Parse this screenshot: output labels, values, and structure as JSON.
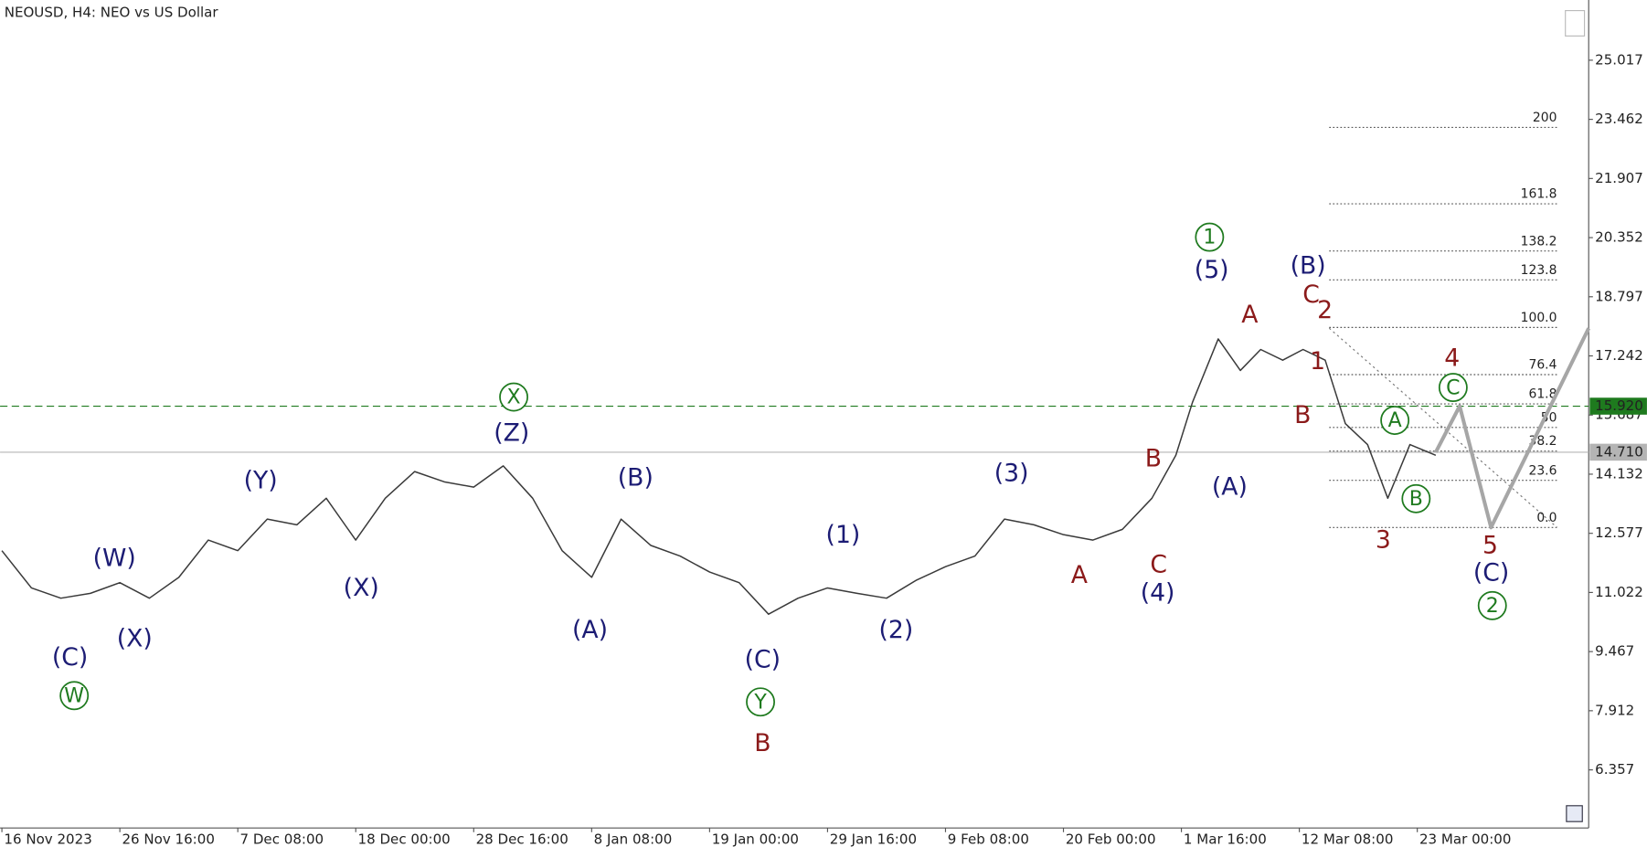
{
  "chart_data": {
    "type": "line",
    "title": "NEOUSD, H4:  NEO vs US Dollar",
    "x": [
      0,
      16,
      32,
      48,
      64,
      80,
      96,
      112,
      128,
      144,
      160,
      176,
      192,
      208,
      224,
      240,
      256,
      272,
      288,
      304,
      320,
      336,
      352,
      368,
      384,
      400,
      416,
      432,
      448,
      464,
      480,
      496,
      512,
      528,
      544,
      560,
      576,
      592,
      608,
      624,
      637,
      646,
      660,
      672,
      683,
      695,
      706,
      718,
      729,
      741,
      752,
      764,
      778
    ],
    "series": [
      {
        "color": "#3a3a3a",
        "values": [
          12.12,
          11.14,
          10.87,
          11.0,
          11.28,
          10.87,
          11.42,
          12.4,
          12.12,
          12.95,
          12.8,
          13.5,
          12.4,
          13.5,
          14.2,
          13.93,
          13.79,
          14.35,
          13.5,
          12.12,
          11.42,
          12.95,
          12.26,
          11.98,
          11.56,
          11.28,
          10.45,
          10.87,
          11.14,
          11.0,
          10.87,
          11.34,
          11.7,
          11.98,
          12.95,
          12.8,
          12.54,
          12.4,
          12.68,
          13.5,
          14.63,
          16.02,
          17.69,
          16.86,
          17.41,
          17.13,
          17.41,
          17.13,
          15.46,
          14.91,
          13.5,
          14.91,
          14.63
        ]
      },
      {
        "color": "#a6a6a6",
        "x": [
          778,
          791,
          808,
          861
        ],
        "values": [
          14.71,
          15.92,
          12.73,
          17.97
        ]
      }
    ],
    "xlim": [
      -1,
      861
    ],
    "xticks": [
      {
        "value": 0,
        "label": "16 Nov 2023"
      },
      {
        "value": 64,
        "label": "26 Nov 16:00"
      },
      {
        "value": 128,
        "label": "7 Dec 08:00"
      },
      {
        "value": 192,
        "label": "18 Dec 00:00"
      },
      {
        "value": 256,
        "label": "28 Dec 16:00"
      },
      {
        "value": 320,
        "label": "8 Jan 08:00"
      },
      {
        "value": 384,
        "label": "19 Jan 00:00"
      },
      {
        "value": 448,
        "label": "29 Jan 16:00"
      },
      {
        "value": 512,
        "label": "9 Feb 08:00"
      },
      {
        "value": 576,
        "label": "20 Feb 00:00"
      },
      {
        "value": 640,
        "label": "1 Mar 16:00"
      },
      {
        "value": 704,
        "label": "12 Mar 08:00"
      },
      {
        "value": 768,
        "label": "23 Mar 00:00"
      }
    ],
    "ylim": [
      4.83,
      26.6
    ],
    "yticks": [
      6.357,
      7.912,
      9.467,
      11.022,
      12.577,
      14.132,
      15.687,
      17.242,
      18.797,
      20.352,
      21.907,
      23.462,
      25.017
    ],
    "price_lines": [
      {
        "value": 15.92,
        "label": "15.920",
        "color": "#1e7a1e",
        "dashed": true
      },
      {
        "value": 14.71,
        "label": "14.710",
        "color": "#b4b4b4",
        "dashed": false
      }
    ],
    "fibonacci": [
      {
        "label": "0.0",
        "value": 12.73
      },
      {
        "label": "23.6",
        "value": 13.97
      },
      {
        "label": "38.2",
        "value": 14.74
      },
      {
        "label": "50",
        "value": 15.36
      },
      {
        "label": "61.8",
        "value": 15.98
      },
      {
        "label": "76.4",
        "value": 16.75
      },
      {
        "label": "100.0",
        "value": 17.99
      },
      {
        "label": "123.8",
        "value": 19.24
      },
      {
        "label": "138.2",
        "value": 20.0
      },
      {
        "label": "161.8",
        "value": 21.24
      },
      {
        "label": "200",
        "value": 23.25
      }
    ],
    "annotations": [
      {
        "text": "(C)",
        "color": "#1c1c74"
      },
      {
        "text": "W",
        "color": "#1e7a1e",
        "circled": true
      },
      {
        "text": "(W)",
        "color": "#1c1c74"
      },
      {
        "text": "(X)",
        "color": "#1c1c74"
      },
      {
        "text": "(Y)",
        "color": "#1c1c74"
      },
      {
        "text": "(X)",
        "color": "#1c1c74"
      },
      {
        "text": "(Z)",
        "color": "#1c1c74"
      },
      {
        "text": "X",
        "color": "#1e7a1e",
        "circled": true
      },
      {
        "text": "(A)",
        "color": "#1c1c74"
      },
      {
        "text": "(B)",
        "color": "#1c1c74"
      },
      {
        "text": "(C)",
        "color": "#1c1c74"
      },
      {
        "text": "Y",
        "color": "#1e7a1e",
        "circled": true
      },
      {
        "text": "B",
        "color": "#8b1a1a"
      },
      {
        "text": "(1)",
        "color": "#1c1c74"
      },
      {
        "text": "(2)",
        "color": "#1c1c74"
      },
      {
        "text": "(3)",
        "color": "#1c1c74"
      },
      {
        "text": "A",
        "color": "#8b1a1a"
      },
      {
        "text": "B",
        "color": "#8b1a1a"
      },
      {
        "text": "C",
        "color": "#8b1a1a"
      },
      {
        "text": "(4)",
        "color": "#1c1c74"
      },
      {
        "text": "1",
        "color": "#1e7a1e",
        "circled": true
      },
      {
        "text": "(5)",
        "color": "#1c1c74"
      },
      {
        "text": "A",
        "color": "#8b1a1a"
      },
      {
        "text": "(A)",
        "color": "#1c1c74"
      },
      {
        "text": "(B)",
        "color": "#1c1c74"
      },
      {
        "text": "C",
        "color": "#8b1a1a"
      },
      {
        "text": "2",
        "color": "#8b1a1a"
      },
      {
        "text": "1",
        "color": "#8b1a1a"
      },
      {
        "text": "B",
        "color": "#8b1a1a"
      },
      {
        "text": "A",
        "color": "#1e7a1e",
        "circled": true
      },
      {
        "text": "B",
        "color": "#1e7a1e",
        "circled": true
      },
      {
        "text": "3",
        "color": "#8b1a1a"
      },
      {
        "text": "4",
        "color": "#8b1a1a"
      },
      {
        "text": "C",
        "color": "#1e7a1e",
        "circled": true
      },
      {
        "text": "5",
        "color": "#8b1a1a"
      },
      {
        "text": "(C)",
        "color": "#1c1c74"
      },
      {
        "text": "2",
        "color": "#1e7a1e",
        "circled": true
      }
    ]
  }
}
